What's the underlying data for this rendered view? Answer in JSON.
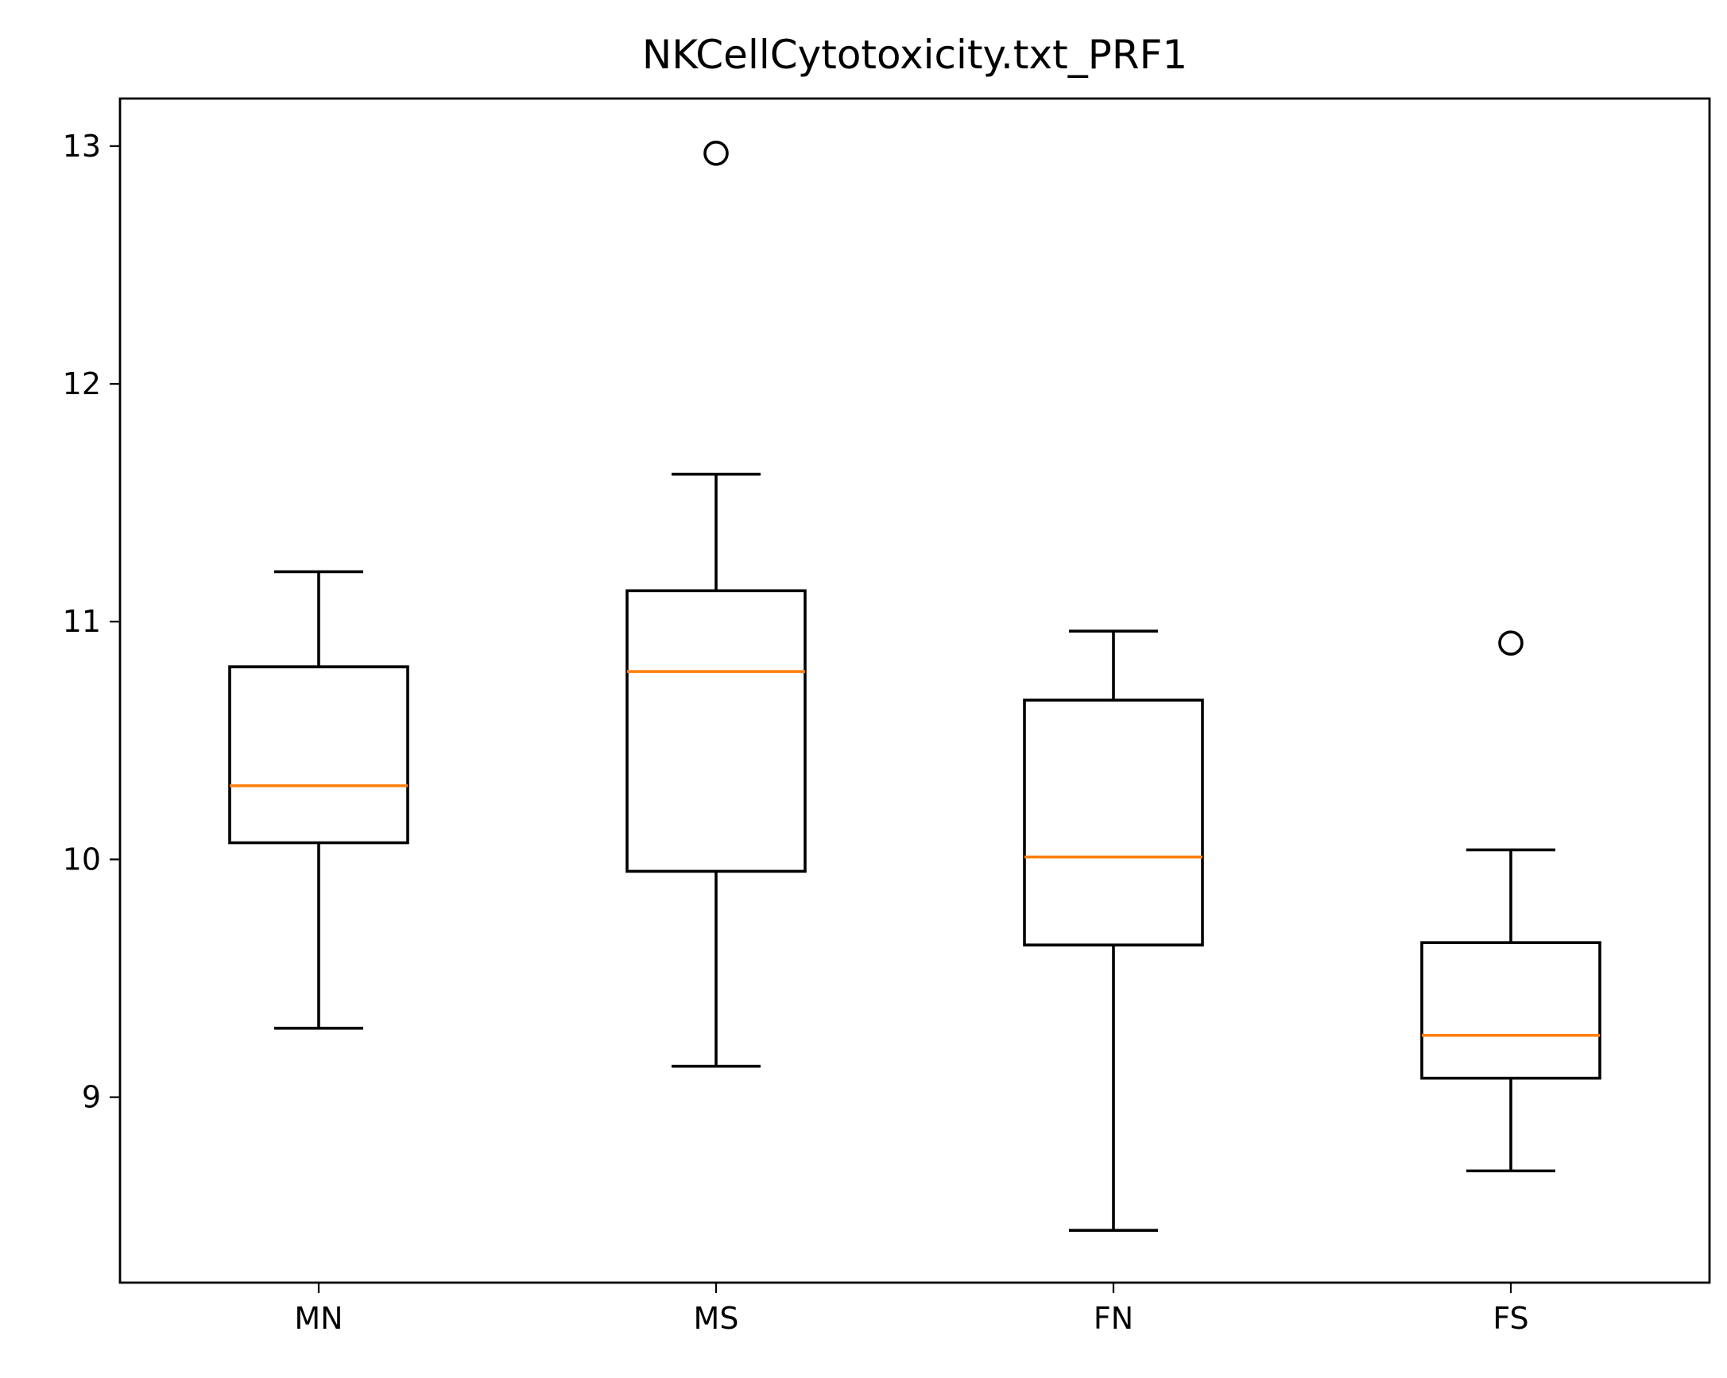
{
  "chart_data": {
    "type": "box",
    "title": "NKCellCytotoxicity.txt_PRF1",
    "xlabel": "",
    "ylabel": "",
    "categories": [
      "MN",
      "MS",
      "FN",
      "FS"
    ],
    "ylim": [
      8.22,
      13.2
    ],
    "yticks": [
      9,
      10,
      11,
      12,
      13
    ],
    "ytick_labels": [
      "9",
      "10",
      "11",
      "12",
      "13"
    ],
    "grid": false,
    "boxes": [
      {
        "label": "MN",
        "whislo": 9.29,
        "q1": 10.07,
        "med": 10.31,
        "q3": 10.81,
        "whishi": 11.21,
        "fliers": []
      },
      {
        "label": "MS",
        "whislo": 9.13,
        "q1": 9.95,
        "med": 10.79,
        "q3": 11.13,
        "whishi": 11.62,
        "fliers": [
          12.97
        ]
      },
      {
        "label": "FN",
        "whislo": 8.44,
        "q1": 9.64,
        "med": 10.01,
        "q3": 10.67,
        "whishi": 10.96,
        "fliers": []
      },
      {
        "label": "FS",
        "whislo": 8.69,
        "q1": 9.08,
        "med": 9.26,
        "q3": 9.65,
        "whishi": 10.04,
        "fliers": [
          10.91
        ]
      }
    ],
    "colors": {
      "box": "#000000",
      "median": "#ff7f0e",
      "flier": "#000000"
    }
  }
}
